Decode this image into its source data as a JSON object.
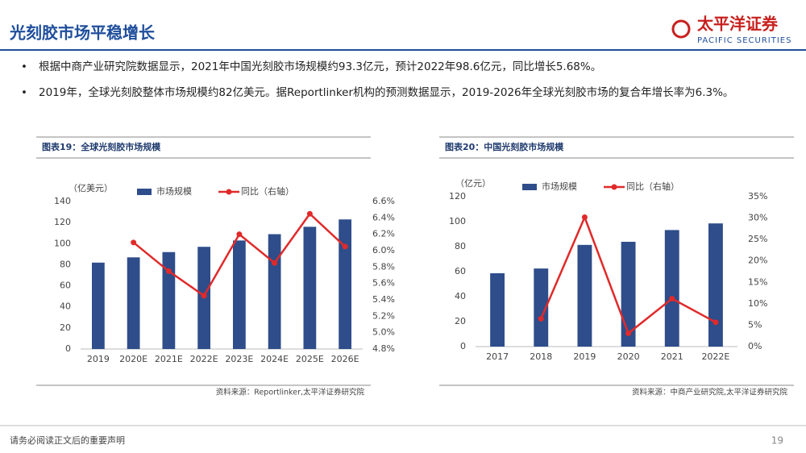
{
  "header": {
    "title": "光刻胶市场平稳增长",
    "logo": "太平洋证券",
    "logo_en": "PACIFIC SECURITIES"
  },
  "bullets": [
    "根据中商产业研究院数据显示，2021年中国光刻胶市场规模约93.3亿元，预计2022年98.6亿元，同比增长5.68%。",
    "2019年，全球光刻胶整体市场规模约82亿美元。据Reportlinker机构的预测数据显示，2019-2026年全球光刻胶市场的复合年增长率为6.3%。"
  ],
  "chart_data": [
    {
      "type": "bar",
      "title": "图表19：全球光刻胶市场规模",
      "y_label": "（亿美元）",
      "source": "资料来源：Reportlinker,太平洋证券研究院",
      "categories": [
        "2019",
        "2020E",
        "2021E",
        "2022E",
        "2023E",
        "2024E",
        "2025E",
        "2026E"
      ],
      "series": [
        {
          "name": "市场规模",
          "color": "#2e4d8a",
          "values": [
            82,
            87,
            92,
            97,
            103,
            109,
            116,
            123
          ]
        },
        {
          "name": "同比（右轴）",
          "color": "#e02a2a",
          "type": "line",
          "axis": "y2",
          "values": [
            null,
            6.1,
            5.75,
            5.45,
            6.2,
            5.85,
            6.45,
            6.05
          ]
        }
      ],
      "ylim": [
        0,
        140
      ],
      "yticks": [
        0,
        20,
        40,
        60,
        80,
        100,
        120,
        140
      ],
      "y2lim": [
        4.8,
        6.6
      ],
      "y2ticks": [
        {
          "value": 4.8,
          "label": "4.8%"
        },
        {
          "value": 5.0,
          "label": "5.0%"
        },
        {
          "value": 5.2,
          "label": "5.2%"
        },
        {
          "value": 5.4,
          "label": "5.4%"
        },
        {
          "value": 5.6,
          "label": "5.6%"
        },
        {
          "value": 5.8,
          "label": "5.8%"
        },
        {
          "value": 6.0,
          "label": "6.0%"
        },
        {
          "value": 6.2,
          "label": "6.2%"
        },
        {
          "value": 6.4,
          "label": "6.4%"
        },
        {
          "value": 6.6,
          "label": "6.6%"
        }
      ],
      "grid": false
    },
    {
      "type": "bar",
      "title": "图表20：中国光刻胶市场规模",
      "y_label": "（亿元）",
      "source": "资料来源：中商产业研究院,太平洋证券研究院",
      "categories": [
        "2017",
        "2018",
        "2019",
        "2020",
        "2021",
        "2022E"
      ],
      "series": [
        {
          "name": "市场规模",
          "color": "#2e4d8a",
          "values": [
            58.7,
            62.5,
            81.4,
            83.9,
            93.3,
            98.6
          ]
        },
        {
          "name": "同比（右轴）",
          "color": "#e02a2a",
          "type": "line",
          "axis": "y2",
          "values": [
            null,
            6.5,
            30.2,
            3.1,
            11.2,
            5.68
          ]
        }
      ],
      "ylim": [
        0,
        120
      ],
      "yticks": [
        0,
        20,
        40,
        60,
        80,
        100,
        120
      ],
      "y2lim": [
        0,
        35
      ],
      "y2ticks": [
        {
          "value": 0,
          "label": "0%"
        },
        {
          "value": 5,
          "label": "5%"
        },
        {
          "value": 10,
          "label": "10%"
        },
        {
          "value": 15,
          "label": "15%"
        },
        {
          "value": 20,
          "label": "20%"
        },
        {
          "value": 25,
          "label": "25%"
        },
        {
          "value": 30,
          "label": "30%"
        },
        {
          "value": 35,
          "label": "35%"
        }
      ],
      "grid": false
    }
  ],
  "footer": {
    "note": "请务必阅读正文后的重要声明",
    "page": "19"
  }
}
